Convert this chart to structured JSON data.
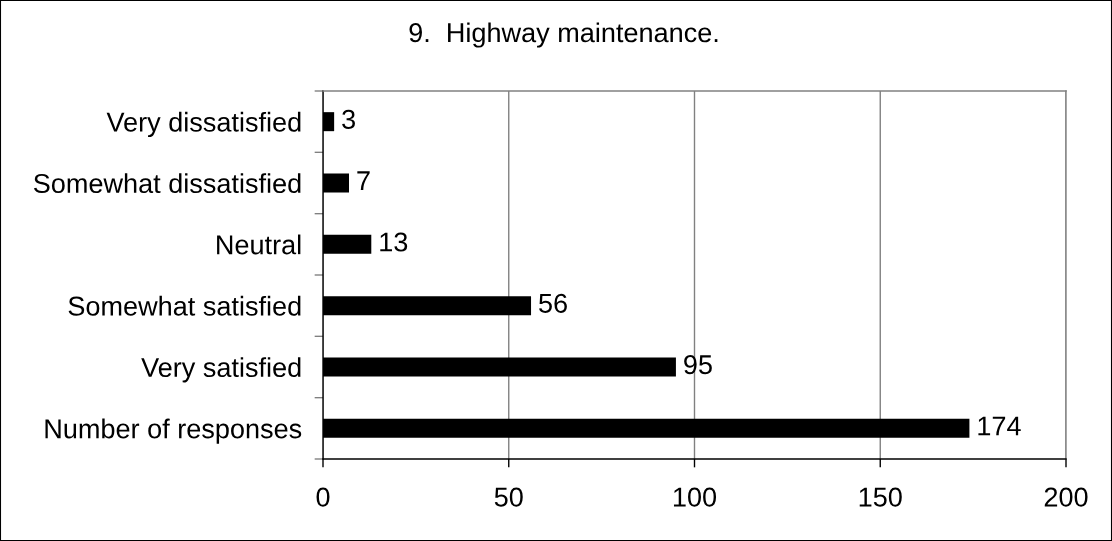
{
  "chart_data": {
    "type": "bar",
    "orientation": "horizontal",
    "title": "9.  Highway maintenance.",
    "categories": [
      "Very dissatisfied",
      "Somewhat dissatisfied",
      "Neutral",
      "Somewhat satisfied",
      "Very satisfied",
      "Number of responses"
    ],
    "values": [
      3,
      7,
      13,
      56,
      95,
      174
    ],
    "color": "#000000",
    "xlim": [
      0,
      200
    ],
    "xticks": [
      0,
      50,
      100,
      150,
      200
    ],
    "grid": "x",
    "data_labels": true
  }
}
